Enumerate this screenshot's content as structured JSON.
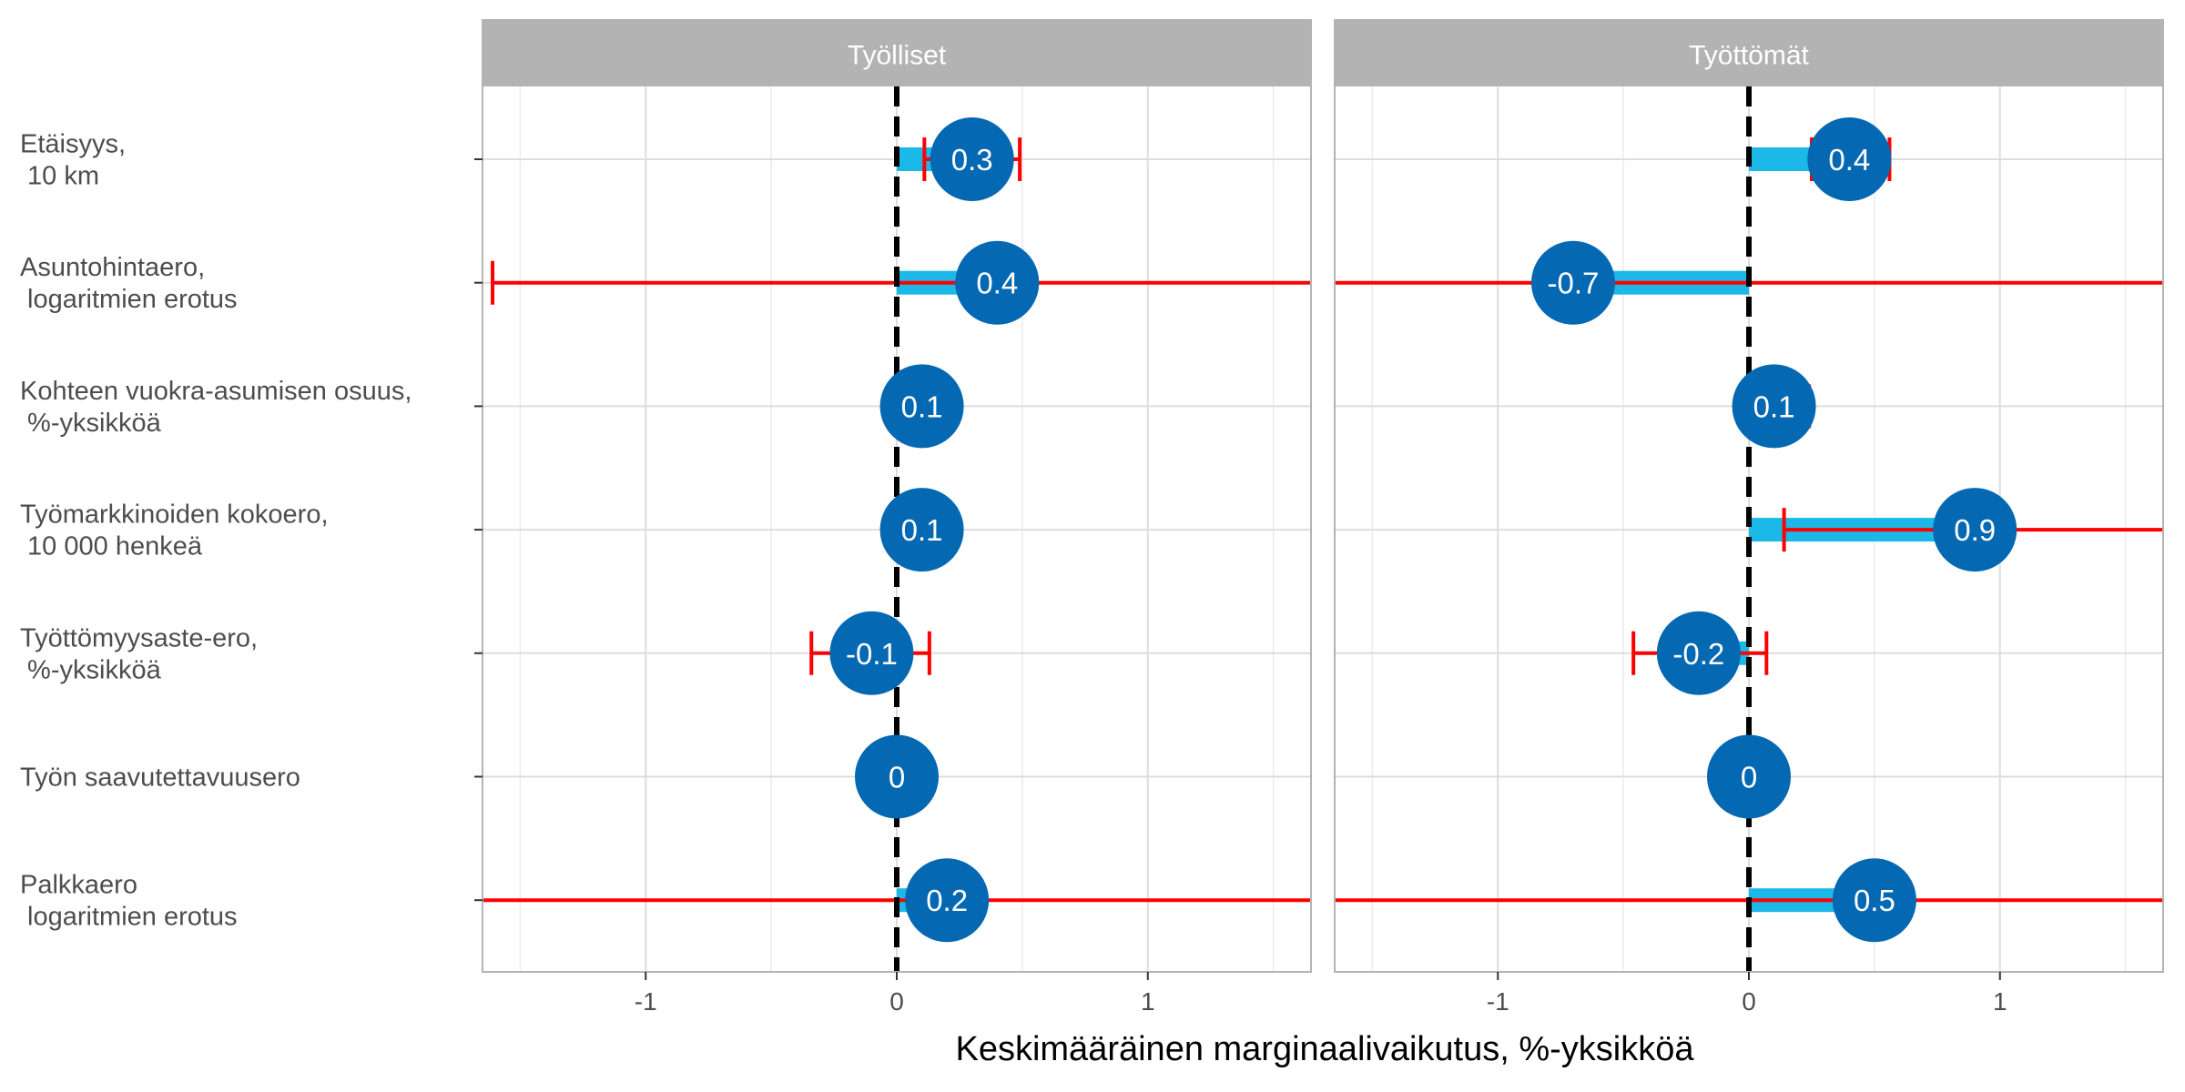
{
  "chart_data": {
    "type": "dot-errorbar",
    "xlabel": "Keskimääräinen marginaalivaikutus, %-yksikköä",
    "xlim": [
      -1.65,
      1.65
    ],
    "xticks": [
      -1,
      0,
      1
    ],
    "grid": true,
    "reference_line": 0,
    "categories": [
      "Etäisyys,\n 10 km",
      "Asuntohintaero,\n logaritmien erotus",
      "Kohteen vuokra-asumisen osuus,\n %-yksikköä",
      "Työmarkkinoiden kokoero,\n 10 000 henkeä",
      "Työttömyysaste-ero,\n %-yksikköä",
      "Työn saavutettavuusero",
      "Palkkaero\n logaritmien erotus"
    ],
    "panels": [
      {
        "name": "Työlliset",
        "values": [
          0.3,
          0.4,
          0.1,
          0.1,
          -0.1,
          0,
          0.2
        ],
        "labels": [
          "0.3",
          "0.4",
          "0.1",
          "0.1",
          "-0.1",
          "0",
          "0.2"
        ],
        "ci": [
          [
            0.11,
            0.49
          ],
          [
            -1.61,
            2.0
          ],
          [
            0.06,
            0.14
          ],
          [
            0.06,
            0.13
          ],
          [
            -0.34,
            0.13
          ],
          [
            -0.01,
            0.01
          ],
          [
            -2.0,
            2.0
          ]
        ]
      },
      {
        "name": "Työttömät",
        "values": [
          0.4,
          -0.7,
          0.1,
          0.9,
          -0.2,
          0,
          0.5
        ],
        "labels": [
          "0.4",
          "-0.7",
          "0.1",
          "0.9",
          "-0.2",
          "0",
          "0.5"
        ],
        "ci": [
          [
            0.25,
            0.56
          ],
          [
            -2.0,
            2.0
          ],
          [
            -0.02,
            0.24
          ],
          [
            0.14,
            2.0
          ],
          [
            -0.46,
            0.07
          ],
          [
            -0.01,
            0.01
          ],
          [
            -2.0,
            2.0
          ]
        ]
      }
    ]
  },
  "colors": {
    "point": "#0568B3",
    "bar": "#1BB8E8",
    "error": "#FF0000",
    "reference": "#000000",
    "strip": "#B3B3B3",
    "grid": "#DDDDDD",
    "text": "#333333"
  }
}
